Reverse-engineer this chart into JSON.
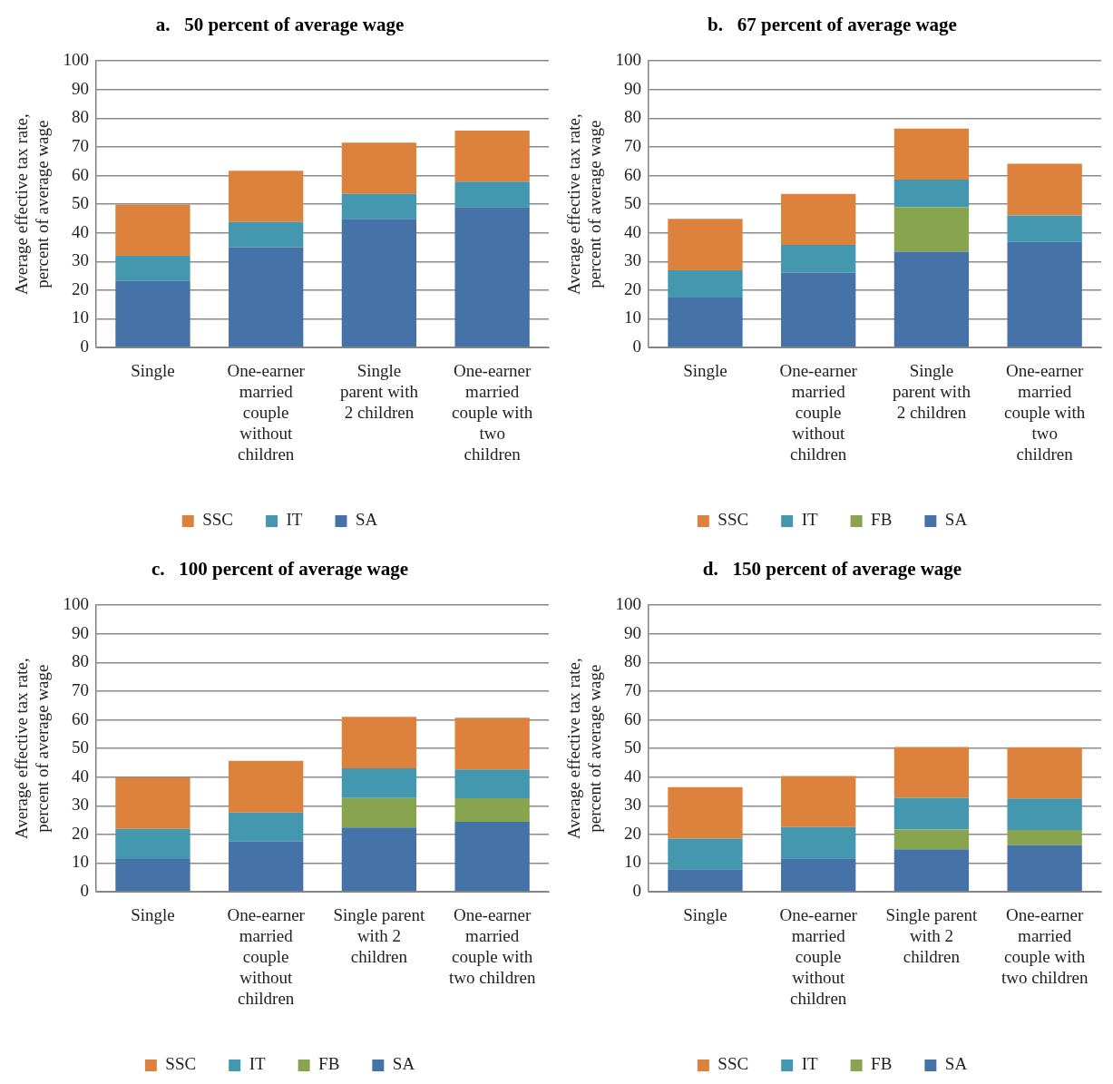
{
  "chart_data": [
    {
      "type": "bar",
      "stacked": true,
      "title": "a.   50 percent of average wage",
      "ylabel": "Average effective tax rate, percent of average wage",
      "categories": [
        "Single",
        "One-earner married couple without children",
        "Single parent with 2 children",
        "One-earner married couple with two children"
      ],
      "ylim": [
        0,
        100
      ],
      "yticks": [
        0,
        10,
        20,
        30,
        40,
        50,
        60,
        70,
        80,
        90,
        100
      ],
      "grid": "y",
      "legend": "bottom",
      "series": [
        {
          "name": "SA",
          "color": "#4572a7",
          "values": [
            23.2,
            34.9,
            44.9,
            49.0
          ]
        },
        {
          "name": "IT",
          "color": "#4397ae",
          "values": [
            8.8,
            8.9,
            8.7,
            8.9
          ]
        },
        {
          "name": "SSC",
          "color": "#dc823c",
          "values": [
            17.9,
            17.9,
            17.9,
            17.8
          ]
        }
      ]
    },
    {
      "type": "bar",
      "stacked": true,
      "title": "b.   67 percent of average wage",
      "ylabel": "Average effective tax rate, percent of average wage",
      "categories": [
        "Single",
        "One-earner married couple without children",
        "Single parent with 2 children",
        "One-earner married couple with two children"
      ],
      "ylim": [
        0,
        100
      ],
      "yticks": [
        0,
        10,
        20,
        30,
        40,
        50,
        60,
        70,
        80,
        90,
        100
      ],
      "grid": "y",
      "legend": "bottom",
      "series": [
        {
          "name": "SA",
          "color": "#4572a7",
          "values": [
            17.4,
            26.1,
            33.4,
            36.8
          ]
        },
        {
          "name": "FB",
          "color": "#89a44e",
          "values": [
            null,
            null,
            15.5,
            null
          ]
        },
        {
          "name": "IT",
          "color": "#4397ae",
          "values": [
            9.5,
            9.7,
            9.7,
            9.3
          ]
        },
        {
          "name": "SSC",
          "color": "#dc823c",
          "values": [
            18.0,
            17.8,
            17.8,
            18.0
          ]
        }
      ]
    },
    {
      "type": "bar",
      "stacked": true,
      "title": "c.   100 percent of average wage",
      "ylabel": "Average effective tax rate, percent of average wage",
      "categories": [
        "Single",
        "One-earner married couple without children",
        "Single parent with 2 children",
        "One-earner married couple with two children"
      ],
      "ylim": [
        0,
        100
      ],
      "yticks": [
        0,
        10,
        20,
        30,
        40,
        50,
        60,
        70,
        80,
        90,
        100
      ],
      "grid": "y",
      "legend": "bottom",
      "series": [
        {
          "name": "SA",
          "color": "#4572a7",
          "values": [
            11.4,
            17.5,
            22.4,
            24.4
          ]
        },
        {
          "name": "FB",
          "color": "#89a44e",
          "values": [
            null,
            null,
            10.3,
            8.2
          ]
        },
        {
          "name": "IT",
          "color": "#4397ae",
          "values": [
            10.5,
            10.1,
            10.4,
            10.1
          ]
        },
        {
          "name": "SSC",
          "color": "#dc823c",
          "values": [
            18.0,
            18.1,
            17.9,
            18.0
          ]
        }
      ]
    },
    {
      "type": "bar",
      "stacked": true,
      "title": "d.   150 percent of average wage",
      "ylabel": "Average effective tax rate, percent of average wage",
      "categories": [
        "Single",
        "One-earner married couple without children",
        "Single parent with 2 children",
        "One-earner married couple with two children"
      ],
      "ylim": [
        0,
        100
      ],
      "yticks": [
        0,
        10,
        20,
        30,
        40,
        50,
        60,
        70,
        80,
        90,
        100
      ],
      "grid": "y",
      "legend": "bottom",
      "series": [
        {
          "name": "SA",
          "color": "#4572a7",
          "values": [
            7.8,
            11.6,
            14.8,
            16.2
          ]
        },
        {
          "name": "FB",
          "color": "#89a44e",
          "values": [
            null,
            null,
            6.9,
            5.3
          ]
        },
        {
          "name": "IT",
          "color": "#4397ae",
          "values": [
            10.7,
            11.0,
            11.1,
            11.0
          ]
        },
        {
          "name": "SSC",
          "color": "#dc823c",
          "values": [
            18.0,
            17.8,
            17.7,
            17.9
          ]
        }
      ]
    }
  ]
}
